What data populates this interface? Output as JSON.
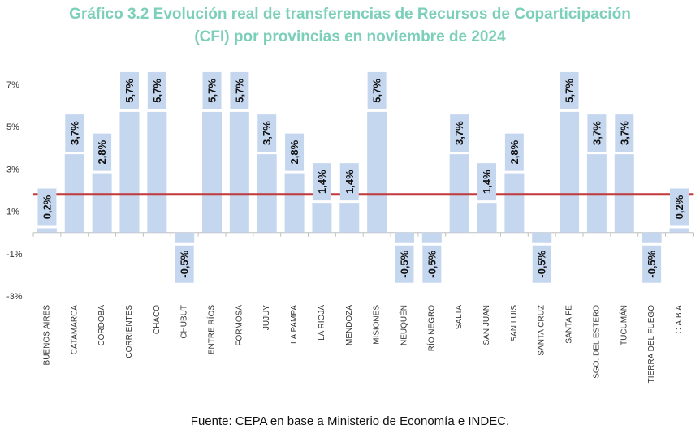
{
  "chart_data": {
    "type": "bar",
    "title": "Gráfico 3.2 Evolución real de transferencias de Recursos de Coparticipación",
    "subtitle": "(CFI) por provincias en noviembre de 2024",
    "source": "Fuente: CEPA en base a Ministerio de Economía e INDEC.",
    "xlabel": "",
    "ylabel": "",
    "ylim": [
      -3,
      7
    ],
    "yticks": [
      7,
      5,
      3,
      1,
      -1,
      -3
    ],
    "ytick_labels": [
      "7%",
      "5%",
      "3%",
      "1%",
      "-1%",
      "-3%"
    ],
    "grid": false,
    "categories": [
      "BUENOS AIRES",
      "CATAMARCA",
      "CÓRDOBA",
      "CORRIENTES",
      "CHACO",
      "CHUBUT",
      "ENTRE RÍOS",
      "FORMOSA",
      "JUJUY",
      "LA PAMPA",
      "LA RIOJA",
      "MENDOZA",
      "MISIONES",
      "NEUQUÉN",
      "RÍO NEGRO",
      "SALTA",
      "SAN JUAN",
      "SAN LUIS",
      "SANTA CRUZ",
      "SANTA FE",
      "SGO. DEL ESTERO",
      "TUCUMÁN",
      "TIERRA DEL FUEGO",
      "C.A.B.A"
    ],
    "values": [
      0.2,
      3.7,
      2.8,
      5.7,
      5.7,
      -0.5,
      5.7,
      5.7,
      3.7,
      2.8,
      1.4,
      1.4,
      5.7,
      -0.5,
      -0.5,
      3.7,
      1.4,
      2.8,
      -0.5,
      5.7,
      3.7,
      3.7,
      -0.5,
      0.2
    ],
    "data_labels": [
      "0,2%",
      "3,7%",
      "2,8%",
      "5,7%",
      "5,7%",
      "-0,5%",
      "5,7%",
      "5,7%",
      "3,7%",
      "2,8%",
      "1,4%",
      "1,4%",
      "5,7%",
      "-0,5%",
      "-0,5%",
      "3,7%",
      "1,4%",
      "2,8%",
      "-0,5%",
      "5,7%",
      "3,7%",
      "3,7%",
      "-0,5%",
      "0,2%"
    ],
    "reference_line": 1.8,
    "colors": {
      "bar": "#c5d6ef",
      "reference_line": "#c0393b",
      "title": "#7ccfb8",
      "label": "#111111"
    }
  }
}
